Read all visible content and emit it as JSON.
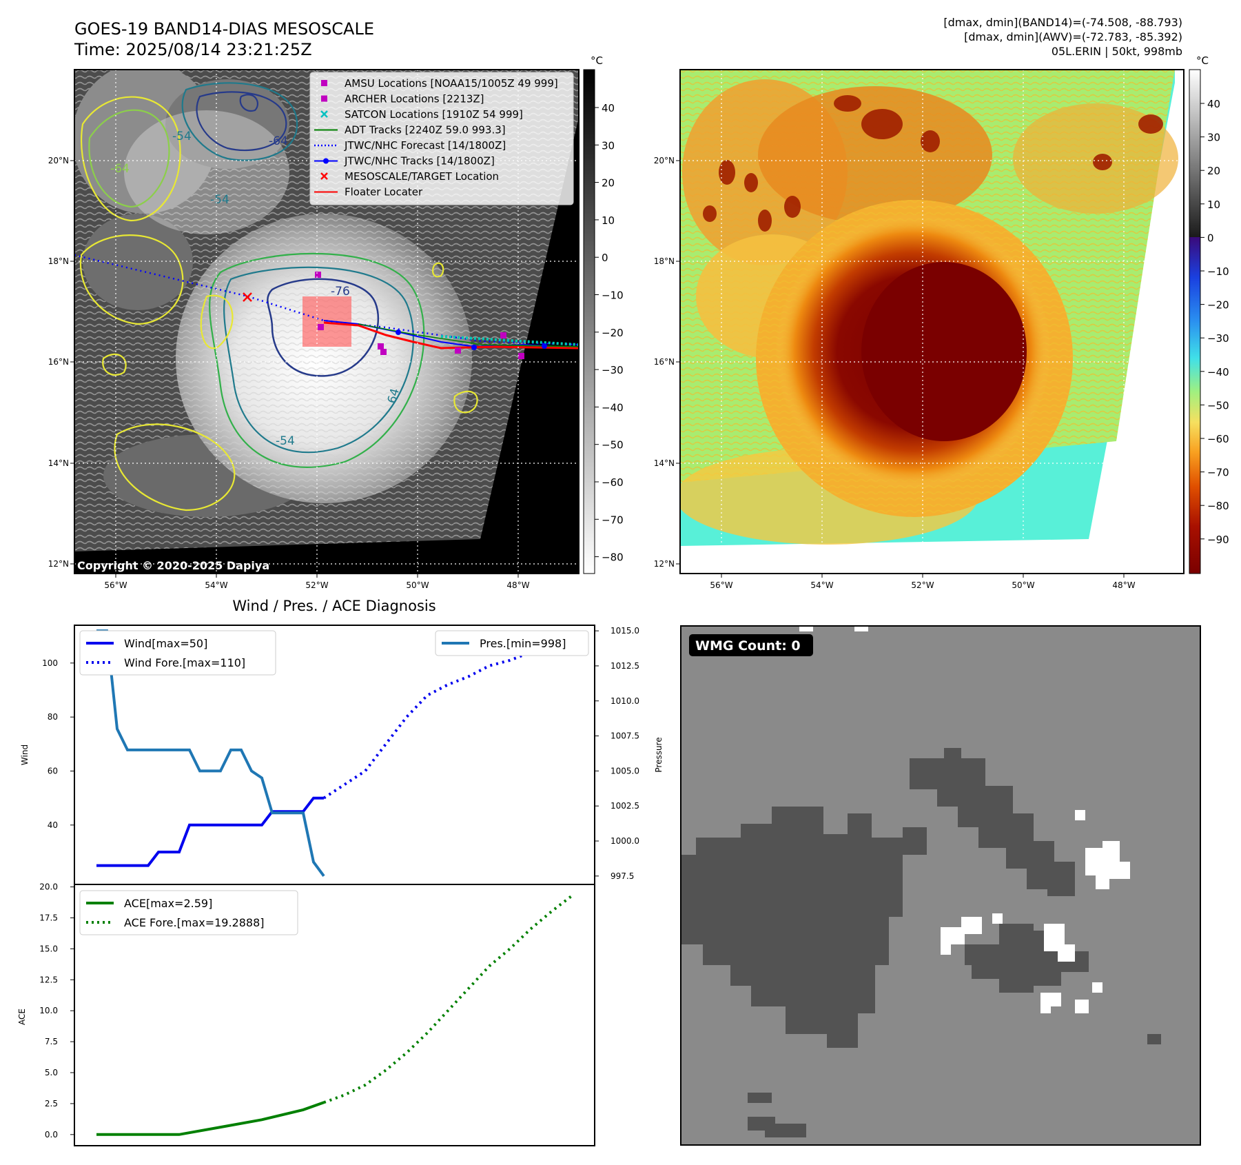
{
  "header": {
    "title_line1": "GOES-19 BAND14-DIAS MESOSCALE",
    "title_line2": "Time: 2025/08/14 23:21:25Z",
    "stats_line1": "[dmax, dmin](BAND14)=(-74.508, -88.793)",
    "stats_line2": "[dmax, dmin](AWV)=(-72.783, -85.392)",
    "stats_line3": "05L.ERIN | 50kt, 998mb"
  },
  "map": {
    "lon_ticks": [
      "56°W",
      "54°W",
      "52°W",
      "50°W",
      "48°W"
    ],
    "lat_ticks": [
      "20°N",
      "18°N",
      "16°N",
      "14°N",
      "12°N"
    ],
    "copyright": "Copyright © 2020-2025 Dapiya",
    "contour_labels": [
      "-54",
      "-64",
      "-76",
      "64",
      "-54",
      "-54",
      "-64"
    ],
    "legend": [
      {
        "label": "AMSU Locations [NOAA15/1005Z 49 999]",
        "color": "#c000c0",
        "marker": "square"
      },
      {
        "label": "ARCHER Locations [2213Z]",
        "color": "#c000c0",
        "marker": "square"
      },
      {
        "label": "SATCON Locations [1910Z 54 999]",
        "color": "#00c0c0",
        "marker": "x"
      },
      {
        "label": "ADT Tracks [2240Z 59.0 993.3]",
        "color": "#008000",
        "marker": "line"
      },
      {
        "label": "JTWC/NHC Forecast [14/1800Z]",
        "color": "#0000ff",
        "marker": "dotted"
      },
      {
        "label": "JTWC/NHC Tracks [14/1800Z]",
        "color": "#0000ff",
        "marker": "line-dot"
      },
      {
        "label": "MESOSCALE/TARGET Location",
        "color": "#ff0000",
        "marker": "x"
      },
      {
        "label": "Floater Locater",
        "color": "#ff0000",
        "marker": "line"
      }
    ]
  },
  "colorbar_bw": {
    "unit": "°C",
    "ticks": [
      "40",
      "30",
      "20",
      "10",
      "0",
      "−10",
      "−20",
      "−30",
      "−40",
      "−50",
      "−60",
      "−70",
      "−80"
    ]
  },
  "colorbar_awv": {
    "unit": "°C",
    "ticks": [
      "40",
      "30",
      "20",
      "10",
      "0",
      "−10",
      "−20",
      "−30",
      "−40",
      "−50",
      "−60",
      "−70",
      "−80",
      "−90"
    ]
  },
  "wind_panel": {
    "title": "Wind / Pres. / ACE Diagnosis",
    "ylabel_left": "Wind",
    "ylabel_right": "Pressure",
    "left_ticks": [
      "100",
      "80",
      "60",
      "40"
    ],
    "right_ticks": [
      "1015.0",
      "1012.5",
      "1010.0",
      "1007.5",
      "1005.0",
      "1002.5",
      "1000.0",
      "997.5"
    ],
    "legend_left": [
      "Wind[max=50]",
      "Wind Fore.[max=110]"
    ],
    "legend_right": [
      "Pres.[min=998]"
    ]
  },
  "ace_panel": {
    "ylabel": "ACE",
    "ticks": [
      "20.0",
      "17.5",
      "15.0",
      "12.5",
      "10.0",
      "7.5",
      "5.0",
      "2.5",
      "0.0"
    ],
    "legend": [
      "ACE[max=2.59]",
      "ACE Fore.[max=19.2888]"
    ]
  },
  "wmg": {
    "label": "WMG Count: 0"
  },
  "chart_data": [
    {
      "type": "line",
      "title": "Wind / Pres. / ACE Diagnosis",
      "ylabel": "Wind",
      "y2label": "Pressure",
      "ylim": [
        18,
        114
      ],
      "y2lim": [
        996.9,
        1015.4
      ],
      "series": [
        {
          "name": "Wind[max=50]",
          "axis": "left",
          "style": "solid",
          "color": "#0000ee",
          "x": [
            0,
            1,
            2,
            3,
            4,
            5,
            6,
            7,
            8,
            9,
            10,
            11,
            12,
            13,
            14,
            15,
            16,
            17,
            18,
            19,
            20,
            21,
            22
          ],
          "values": [
            25,
            25,
            25,
            25,
            25,
            25,
            30,
            30,
            30,
            40,
            40,
            40,
            40,
            40,
            40,
            40,
            40,
            45,
            45,
            45,
            45,
            50,
            50
          ]
        },
        {
          "name": "Wind Fore.[max=110]",
          "axis": "left",
          "style": "dotted",
          "color": "#0000ee",
          "x": [
            22,
            24,
            26,
            28,
            30,
            32,
            34,
            36,
            38,
            40,
            42,
            44,
            46
          ],
          "values": [
            50,
            55,
            60,
            70,
            80,
            88,
            92,
            95,
            99,
            101,
            104,
            107,
            110
          ]
        },
        {
          "name": "Pres.[min=998]",
          "axis": "right",
          "style": "solid",
          "color": "#1f77b4",
          "x": [
            0,
            1,
            2,
            3,
            4,
            5,
            6,
            7,
            8,
            9,
            10,
            11,
            12,
            13,
            14,
            15,
            16,
            17,
            18,
            19,
            20,
            21,
            22
          ],
          "values": [
            1015,
            1015,
            1008,
            1006.5,
            1006.5,
            1006.5,
            1006.5,
            1006.5,
            1006.5,
            1006.5,
            1005,
            1005,
            1005,
            1006.5,
            1006.5,
            1005,
            1004.5,
            1002,
            1002,
            1002,
            1002,
            998.5,
            997.5
          ]
        }
      ]
    },
    {
      "type": "line",
      "ylabel": "ACE",
      "ylim": [
        -0.9,
        20.2
      ],
      "series": [
        {
          "name": "ACE[max=2.59]",
          "style": "solid",
          "color": "#008000",
          "x": [
            0,
            4,
            8,
            12,
            16,
            20,
            22
          ],
          "values": [
            0,
            0,
            0,
            0.6,
            1.2,
            2.0,
            2.59
          ]
        },
        {
          "name": "ACE Fore.[max=19.2888]",
          "style": "dotted",
          "color": "#008000",
          "x": [
            22,
            24,
            26,
            28,
            30,
            32,
            34,
            36,
            38,
            40,
            42,
            44,
            46
          ],
          "values": [
            2.59,
            3.2,
            4.0,
            5.2,
            6.6,
            8.2,
            10.0,
            11.8,
            13.6,
            15.0,
            16.6,
            18.0,
            19.2888
          ]
        }
      ]
    }
  ]
}
